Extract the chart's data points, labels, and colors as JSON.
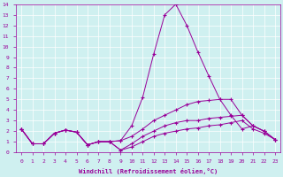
{
  "xlabel": "Windchill (Refroidissement éolien,°C)",
  "background_color": "#cff0f0",
  "line_color": "#990099",
  "xlim": [
    -0.5,
    23.5
  ],
  "ylim": [
    0,
    14
  ],
  "xticks": [
    0,
    1,
    2,
    3,
    4,
    5,
    6,
    7,
    8,
    9,
    10,
    11,
    12,
    13,
    14,
    15,
    16,
    17,
    18,
    19,
    20,
    21,
    22,
    23
  ],
  "yticks": [
    0,
    1,
    2,
    3,
    4,
    5,
    6,
    7,
    8,
    9,
    10,
    11,
    12,
    13,
    14
  ],
  "lines": [
    {
      "x": [
        0,
        1,
        2,
        3,
        4,
        5,
        6,
        7,
        8,
        9,
        10,
        11,
        12,
        13,
        14,
        15,
        16,
        17,
        18,
        19,
        20,
        21,
        22,
        23
      ],
      "y": [
        2.2,
        0.8,
        0.8,
        1.8,
        2.1,
        1.9,
        0.7,
        1.0,
        1.0,
        1.1,
        2.5,
        5.2,
        9.3,
        13.0,
        14.0,
        12.0,
        9.5,
        7.2,
        5.0,
        3.5,
        2.2,
        2.5,
        2.0,
        1.2
      ]
    },
    {
      "x": [
        0,
        1,
        2,
        3,
        4,
        5,
        6,
        7,
        8,
        9,
        10,
        11,
        12,
        13,
        14,
        15,
        16,
        17,
        18,
        19,
        20,
        21,
        22,
        23
      ],
      "y": [
        2.2,
        0.8,
        0.8,
        1.8,
        2.1,
        1.9,
        0.7,
        1.0,
        1.0,
        1.1,
        1.5,
        2.2,
        3.0,
        3.5,
        4.0,
        4.5,
        4.8,
        4.9,
        5.0,
        5.0,
        3.5,
        2.5,
        2.0,
        1.2
      ]
    },
    {
      "x": [
        0,
        1,
        2,
        3,
        4,
        5,
        6,
        7,
        8,
        9,
        10,
        11,
        12,
        13,
        14,
        15,
        16,
        17,
        18,
        19,
        20,
        21,
        22,
        23
      ],
      "y": [
        2.2,
        0.8,
        0.8,
        1.8,
        2.1,
        1.9,
        0.7,
        1.0,
        1.0,
        0.2,
        0.8,
        1.5,
        2.0,
        2.5,
        2.8,
        3.0,
        3.0,
        3.2,
        3.3,
        3.4,
        3.5,
        2.5,
        2.0,
        1.2
      ]
    },
    {
      "x": [
        0,
        1,
        2,
        3,
        4,
        5,
        6,
        7,
        8,
        9,
        10,
        11,
        12,
        13,
        14,
        15,
        16,
        17,
        18,
        19,
        20,
        21,
        22,
        23
      ],
      "y": [
        2.2,
        0.8,
        0.8,
        1.8,
        2.1,
        1.9,
        0.7,
        1.0,
        1.0,
        0.2,
        0.5,
        1.0,
        1.5,
        1.8,
        2.0,
        2.2,
        2.3,
        2.5,
        2.6,
        2.8,
        3.0,
        2.2,
        1.8,
        1.2
      ]
    }
  ]
}
